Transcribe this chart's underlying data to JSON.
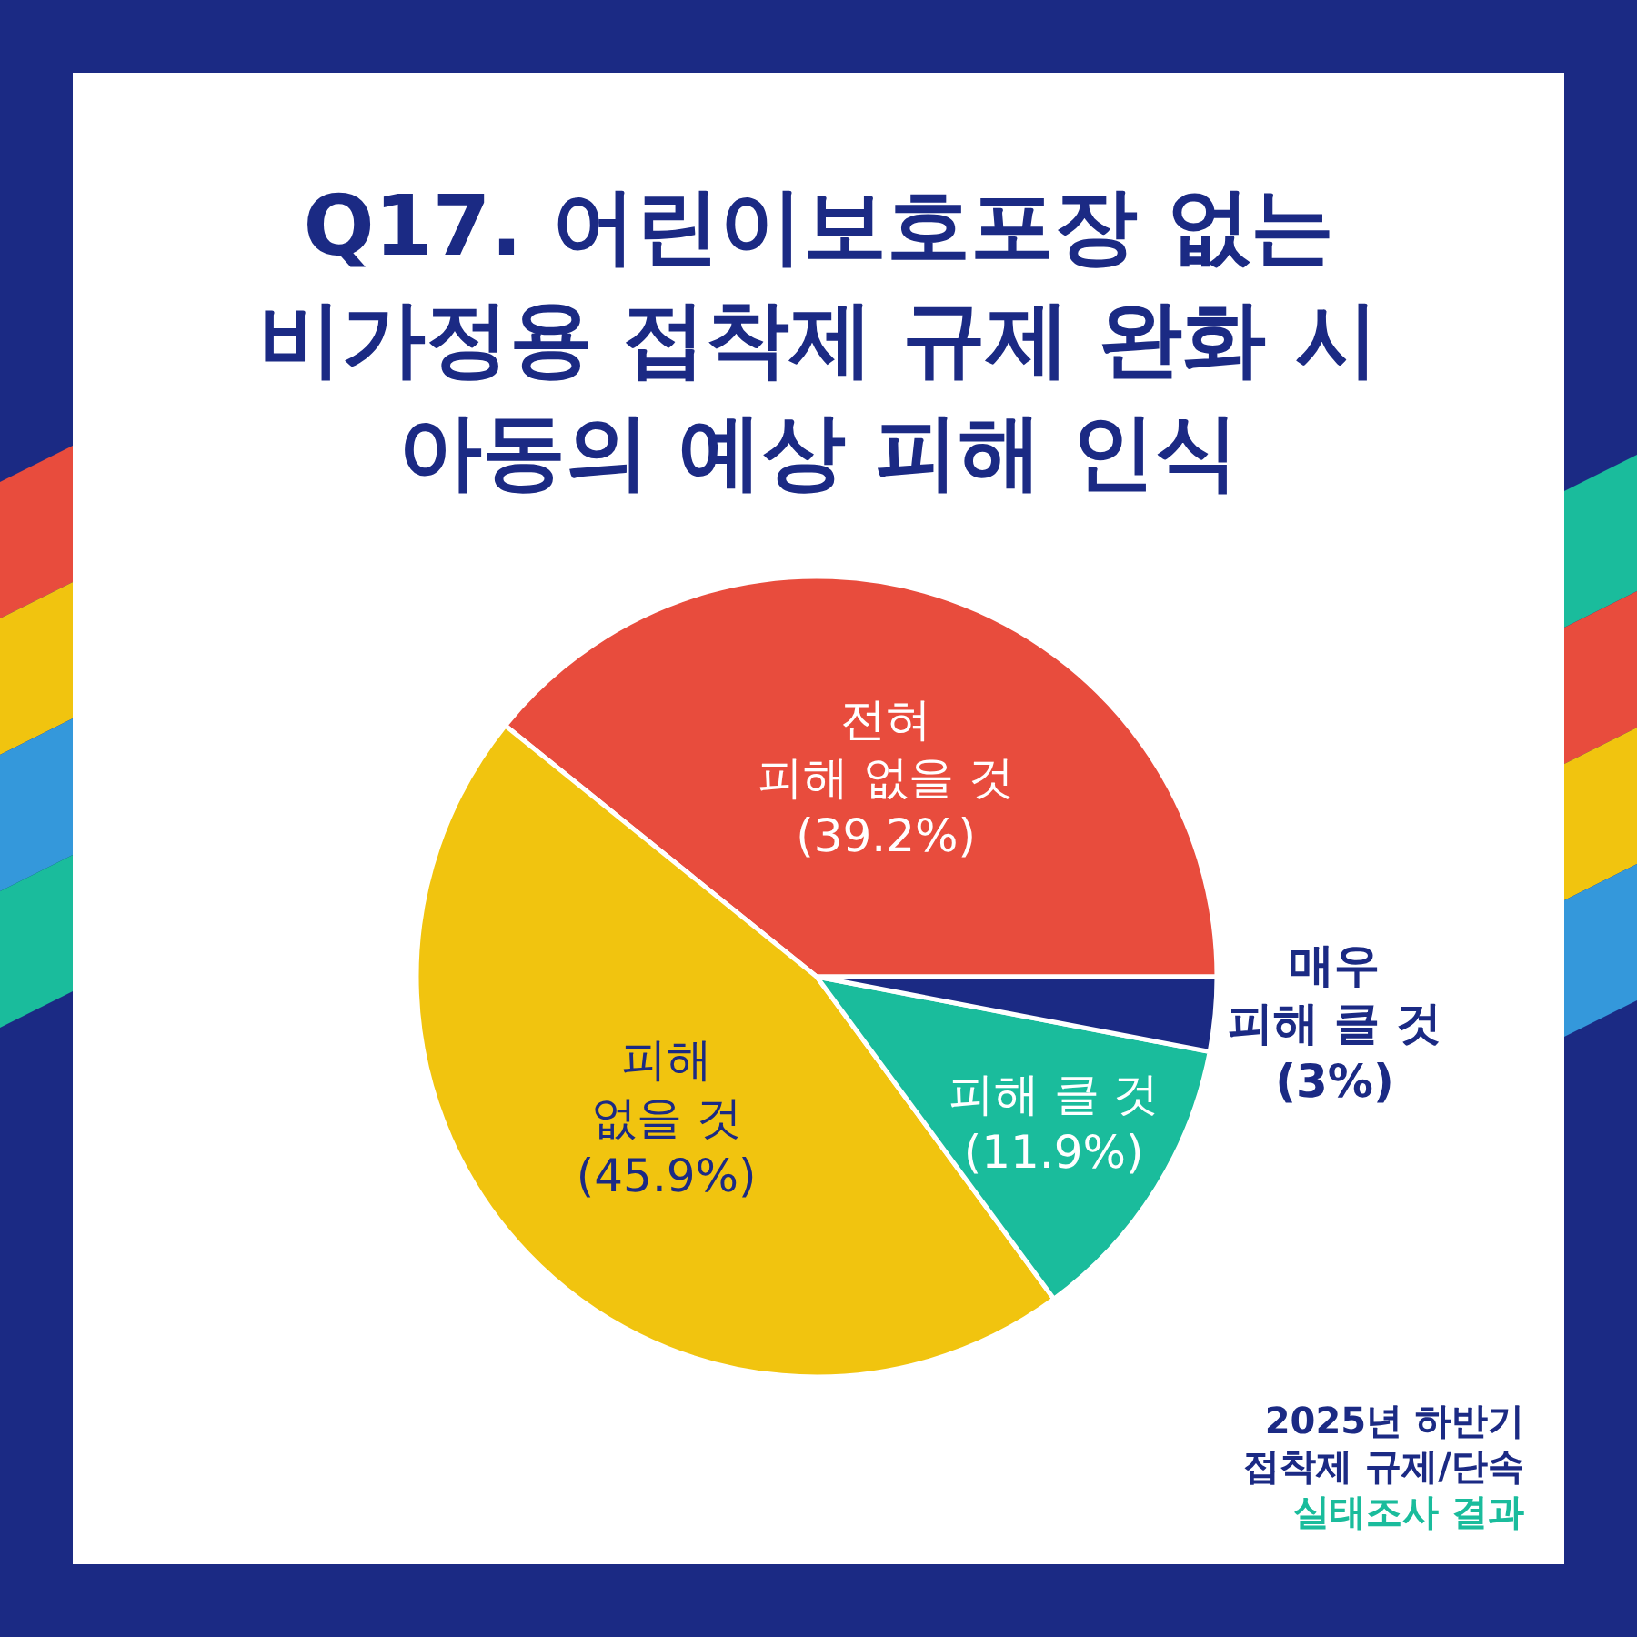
{
  "chart_data": {
    "type": "pie",
    "title": "Q17. 어린이보호포장 없는\n비가정용 접착제 규제 완화 시\n아동의 예상 피해 인식",
    "categories": [
      "전혀\n피해 없을 것",
      "피해\n없을 것",
      "피해 클 것",
      "매우\n피해 클 것"
    ],
    "values": [
      39.2,
      45.9,
      11.9,
      3
    ],
    "value_labels": [
      "(39.2%)",
      "(45.9%)",
      "(11.9%)",
      "(3%)"
    ],
    "colors": [
      "#e84c3d",
      "#f1c40f",
      "#1abc9c",
      "#1b2a84"
    ],
    "annotations": [
      "2025년 하반기",
      "접착제 규제/단속",
      "실태조사 결과"
    ]
  }
}
